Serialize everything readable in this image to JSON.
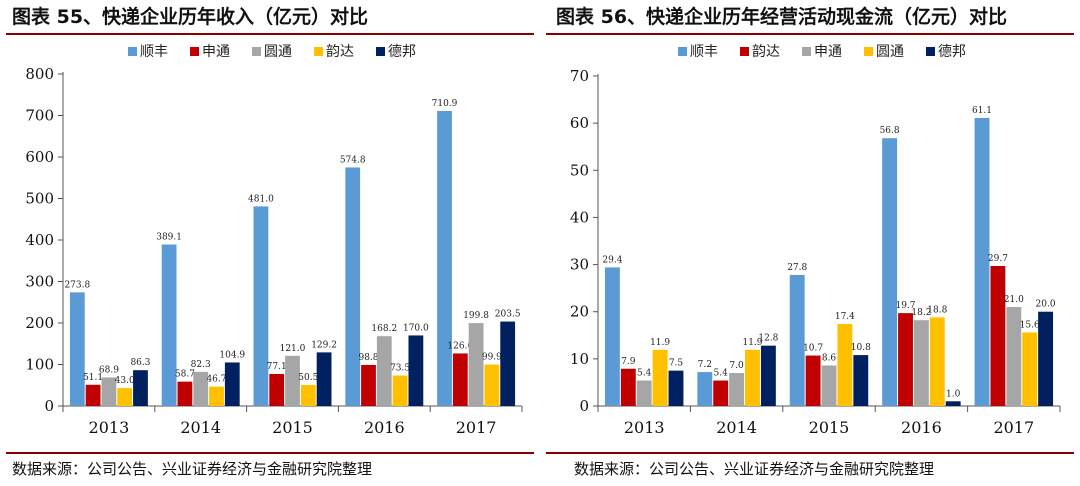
{
  "panels": [
    {
      "title": "图表 55、快递企业历年收入（亿元）对比",
      "source": "数据来源：公司公告、兴业证券经济与金融研究院整理",
      "chart_data": {
        "type": "bar",
        "title": "快递企业历年收入（亿元）对比",
        "categories": [
          "2013",
          "2014",
          "2015",
          "2016",
          "2017"
        ],
        "ylim": [
          0,
          800
        ],
        "yticks": [
          0,
          100,
          200,
          300,
          400,
          500,
          600,
          700,
          800
        ],
        "legend_position": "top",
        "series": [
          {
            "name": "顺丰",
            "color": "#5B9BD5",
            "values": [
              273.8,
              389.1,
              481.0,
              574.8,
              710.9
            ],
            "labels": [
              "273.8",
              "389.1",
              "481.0",
              "574.8",
              "710.9"
            ]
          },
          {
            "name": "申通",
            "color": "#C00000",
            "values": [
              51.1,
              58.7,
              77.1,
              98.8,
              126.6
            ],
            "labels": [
              "51.1",
              "58.7",
              "77.1",
              "98.8",
              "126.6"
            ]
          },
          {
            "name": "圆通",
            "color": "#A6A6A6",
            "values": [
              68.9,
              82.3,
              121.0,
              168.2,
              199.8
            ],
            "labels": [
              "68.9",
              "82.3",
              "121.0",
              "168.2",
              "199.8"
            ]
          },
          {
            "name": "韵达",
            "color": "#FFC000",
            "values": [
              43.0,
              46.7,
              50.5,
              73.5,
              99.9
            ],
            "labels": [
              "43.0",
              "46.7",
              "50.5",
              "73.5",
              "99.9"
            ]
          },
          {
            "name": "德邦",
            "color": "#002060",
            "values": [
              86.3,
              104.9,
              129.2,
              170.0,
              203.5
            ],
            "labels": [
              "86.3",
              "104.9",
              "129.2",
              "170.0",
              "203.5"
            ]
          }
        ]
      }
    },
    {
      "title": "图表 56、快递企业历年经营活动现金流（亿元）对比",
      "source": "数据来源：公司公告、兴业证券经济与金融研究院整理",
      "chart_data": {
        "type": "bar",
        "title": "快递企业历年经营活动现金流（亿元）对比",
        "categories": [
          "2013",
          "2014",
          "2015",
          "2016",
          "2017"
        ],
        "ylim": [
          0,
          70
        ],
        "yticks": [
          0,
          10,
          20,
          30,
          40,
          50,
          60,
          70
        ],
        "legend_position": "top",
        "series": [
          {
            "name": "顺丰",
            "color": "#5B9BD5",
            "values": [
              29.4,
              7.2,
              27.8,
              56.8,
              61.1
            ],
            "labels": [
              "29.4",
              "7.2",
              "27.8",
              "56.8",
              "61.1"
            ]
          },
          {
            "name": "韵达",
            "color": "#C00000",
            "values": [
              7.9,
              5.4,
              10.7,
              19.7,
              29.7
            ],
            "labels": [
              "7.9",
              "5.4",
              "10.7",
              "19.7",
              "29.7"
            ]
          },
          {
            "name": "申通",
            "color": "#A6A6A6",
            "values": [
              5.4,
              7.0,
              8.6,
              18.2,
              21.0
            ],
            "labels": [
              "5.4",
              "7.0",
              "8.6",
              "18.2",
              "21.0"
            ]
          },
          {
            "name": "圆通",
            "color": "#FFC000",
            "values": [
              11.9,
              11.9,
              17.4,
              18.8,
              15.6
            ],
            "labels": [
              "11.9",
              "11.9",
              "17.4",
              "18.8",
              "15.6"
            ]
          },
          {
            "name": "德邦",
            "color": "#002060",
            "values": [
              7.5,
              12.8,
              10.8,
              1.0,
              20.0
            ],
            "labels": [
              "7.5",
              "12.8",
              "10.8",
              "1.0",
              "20.0"
            ]
          }
        ]
      }
    }
  ]
}
